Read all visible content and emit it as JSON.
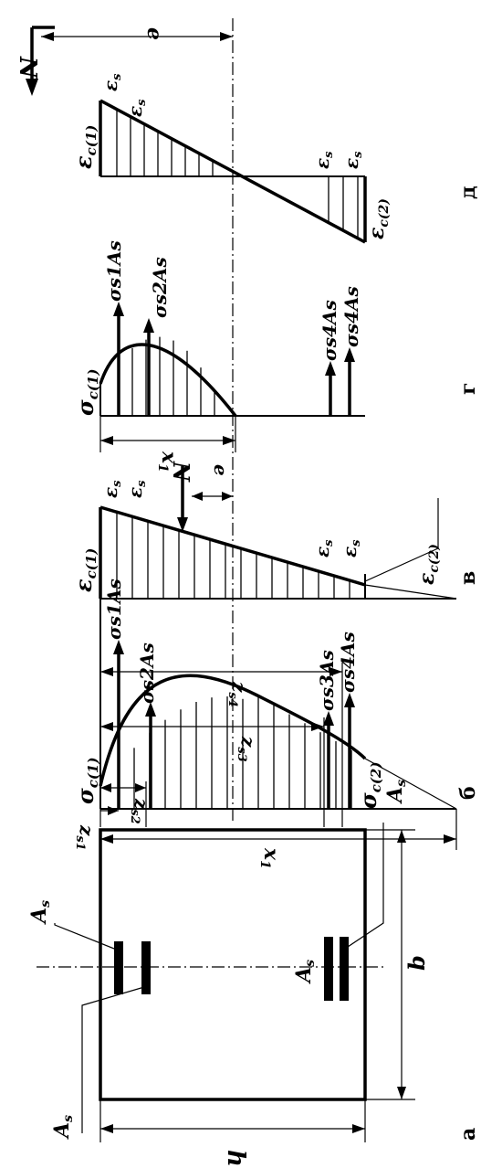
{
  "panels": {
    "a": "а",
    "b": "б",
    "v": "в",
    "g": "г",
    "d": "д"
  },
  "labels": {
    "N": "N",
    "e": "e",
    "h": "h",
    "b_width": "b",
    "As": "A",
    "As_sub": "s",
    "eps": "ε",
    "eps_sub": "s",
    "eps_c1": "ε",
    "eps_c1_sub": "c(1)",
    "eps_c2": "ε",
    "eps_c2_sub": "c(2)",
    "sigma_c1": "σ",
    "sigma_c1_sub": "c(1)",
    "sigma_c2": "σ",
    "sigma_c2_sub": "c(2)",
    "zs1": "z",
    "zs1_sub": "s1",
    "zs2": "z",
    "zs2_sub": "s2",
    "zs3": "z",
    "zs3_sub": "s3",
    "zs4": "z",
    "zs4_sub": "s4",
    "x1": "x",
    "x1_sub": "1",
    "s1As": "σs1As",
    "s2As": "σs2As",
    "s3As": "σs3As",
    "s4As": "σs4As"
  }
}
